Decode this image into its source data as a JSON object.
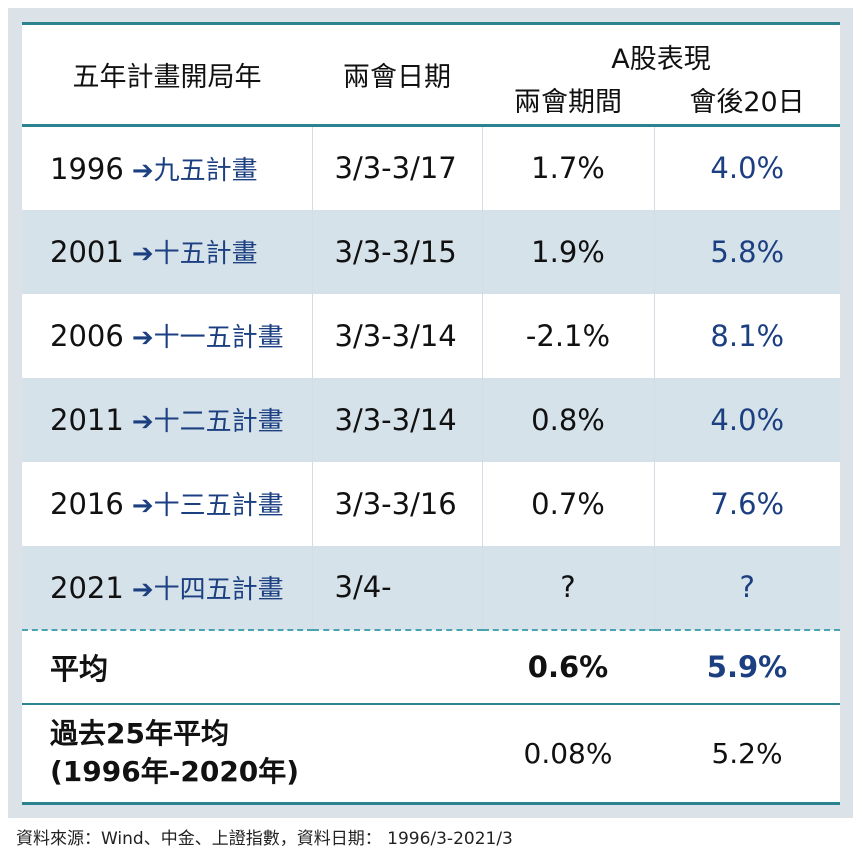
{
  "chart_data": {
    "type": "table",
    "headers": {
      "plan_year": "五年計畫開局年",
      "dates": "兩會日期",
      "group": "A股表現",
      "during": "兩會期間",
      "after": "會後20日"
    },
    "arrow": "➔",
    "rows": [
      {
        "year": "1996",
        "plan": "九五計畫",
        "dates": "3/3-3/17",
        "during": "1.7%",
        "after": "4.0%"
      },
      {
        "year": "2001",
        "plan": "十五計畫",
        "dates": "3/3-3/15",
        "during": "1.9%",
        "after": "5.8%"
      },
      {
        "year": "2006",
        "plan": "十一五計畫",
        "dates": "3/3-3/14",
        "during": "-2.1%",
        "after": "8.1%"
      },
      {
        "year": "2011",
        "plan": "十二五計畫",
        "dates": "3/3-3/14",
        "during": "0.8%",
        "after": "4.0%"
      },
      {
        "year": "2016",
        "plan": "十三五計畫",
        "dates": "3/3-3/16",
        "during": "0.7%",
        "after": "7.6%"
      },
      {
        "year": "2021",
        "plan": "十四五計畫",
        "dates": "3/4-",
        "during": "?",
        "after": "?"
      }
    ],
    "average": {
      "label": "平均",
      "during": "0.6%",
      "after": "5.9%"
    },
    "history": {
      "label_line1": "過去25年平均",
      "label_line2": "(1996年-2020年)",
      "during": "0.08%",
      "after": "5.2%"
    },
    "colors": {
      "accent_line": "#2d8290",
      "blue_text": "#1b3f80",
      "shade_row": "#d6e2ea",
      "panel": "#dbe3e8"
    }
  },
  "source": "資料來源：Wind、中金、上證指數，資料日期： 1996/3-2021/3"
}
